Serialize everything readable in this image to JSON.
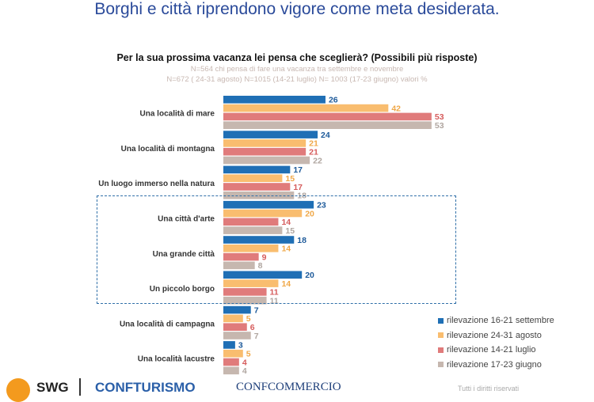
{
  "title": "Borghi e città riprendono vigore come meta desiderata.",
  "chart_data": {
    "type": "bar",
    "orientation": "horizontal",
    "title": "Per la sua prossima vacanza lei pensa che sceglierà? (Possibili più risposte)",
    "subtitle1": "N=564 chi pensa di fare una vacanza tra settembre e novembre",
    "subtitle2": "N=672 ( 24-31 agosto) N=1015 (14-21 luglio) N= 1003 (17-23 giugno) valori %",
    "categories": [
      "Una località di mare",
      "Una località di montagna",
      "Un luogo immerso nella natura",
      "Una città d'arte",
      "Una grande città",
      "Un piccolo borgo",
      "Una località di campagna",
      "Una località lacustre"
    ],
    "series": [
      {
        "name": "rilevazione 16-21 settembre",
        "color": "#1f6fb5",
        "label_color": "#1d5a9a",
        "values": [
          26,
          24,
          17,
          23,
          18,
          20,
          7,
          3
        ]
      },
      {
        "name": "rilevazione 24-31 agosto",
        "color": "#f9bd6f",
        "label_color": "#f0a848",
        "values": [
          42,
          21,
          15,
          20,
          14,
          14,
          5,
          5
        ]
      },
      {
        "name": "rilevazione 14-21 luglio",
        "color": "#e07b7b",
        "label_color": "#d65c5c",
        "values": [
          53,
          21,
          17,
          14,
          9,
          11,
          6,
          4
        ]
      },
      {
        "name": "rilevazione 17-23 giugno",
        "color": "#c6b7af",
        "label_color": "#b0a6a0",
        "values": [
          53,
          22,
          18,
          15,
          8,
          11,
          7,
          4
        ]
      }
    ],
    "highlighted_categories": [
      "Una città d'arte",
      "Una grande città",
      "Un piccolo borgo"
    ],
    "legend_position": "bottom-right",
    "grid": false
  },
  "footer": {
    "logos": [
      "SWG",
      "CONFTURISMO",
      "CONFCOMMERCIO"
    ],
    "rights": "Tutti i diritti riservati"
  }
}
